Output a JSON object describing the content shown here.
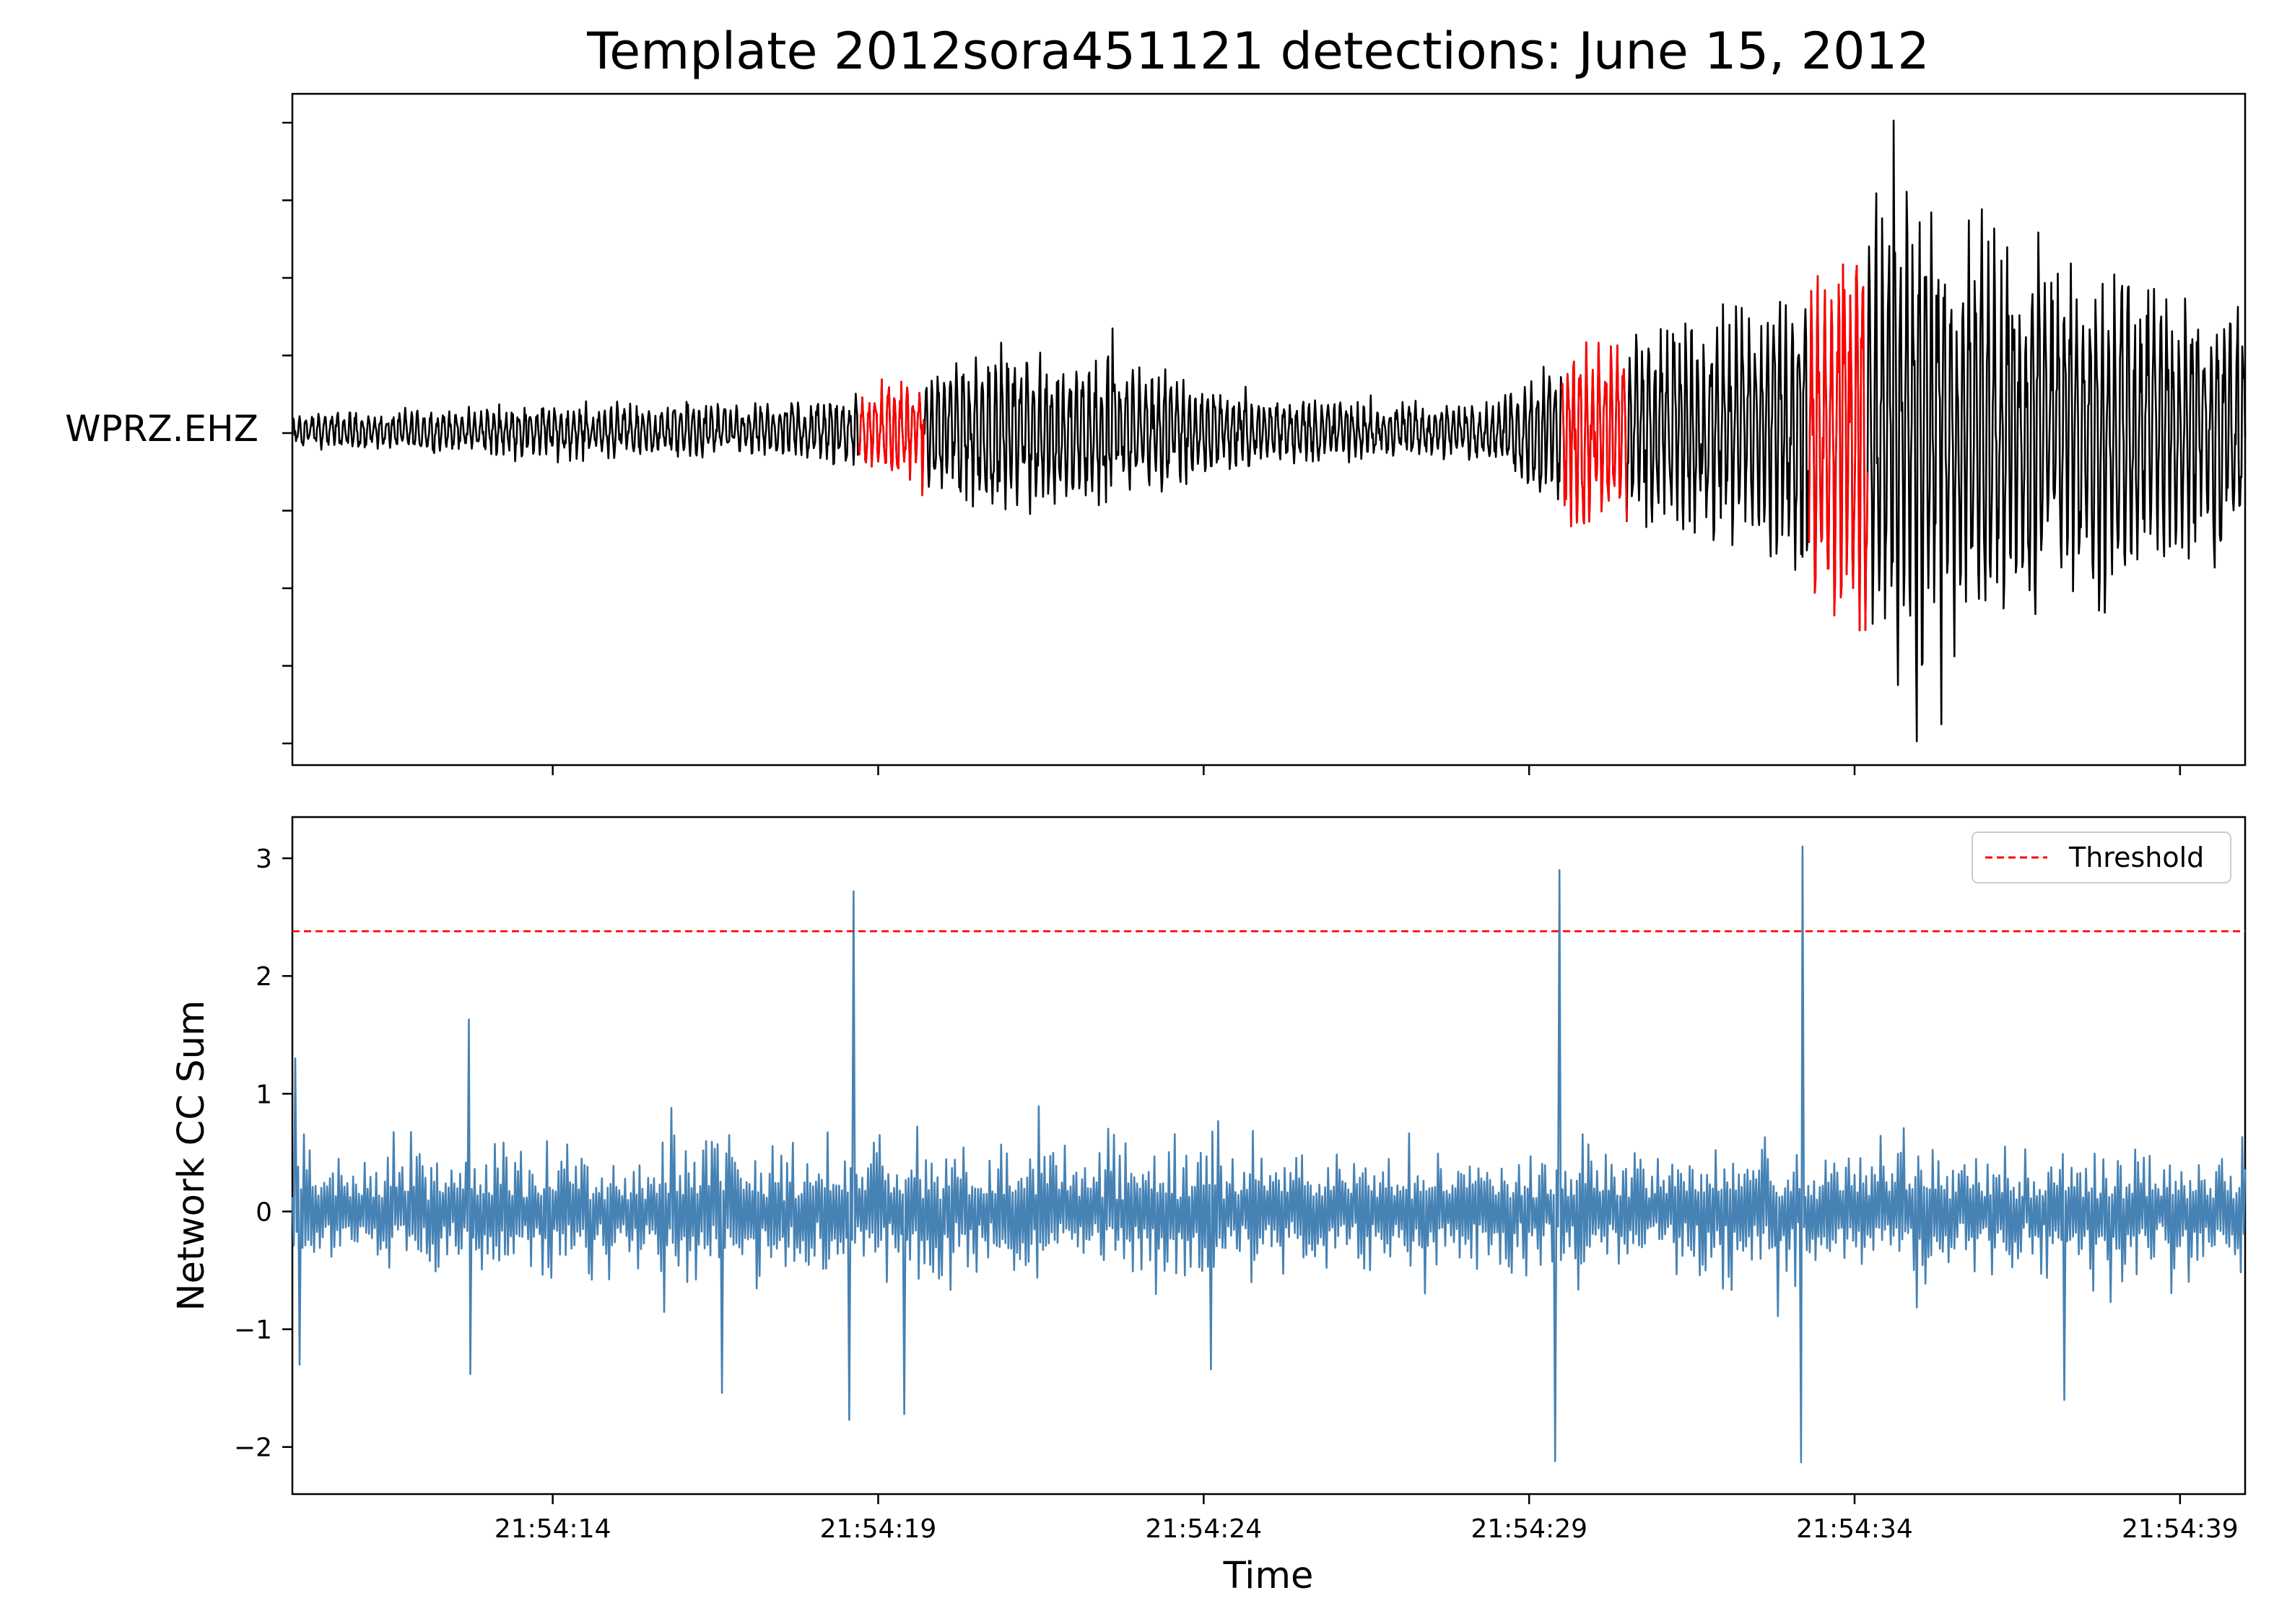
{
  "chart_data": [
    {
      "panel": "waveform",
      "type": "line",
      "title": "Template 2012sora451121 detections: June 15, 2012",
      "ylabel_station": "WPRZ.EHZ",
      "x_start_seconds_label": "21:54:10",
      "x_range_seconds": [
        10,
        40
      ],
      "trace_color": "#000000",
      "detection_color": "#ff0000",
      "detection_windows": [
        {
          "start": 18.7,
          "end": 19.7
        },
        {
          "start": 29.5,
          "end": 30.5
        },
        {
          "start": 33.3,
          "end": 34.2
        }
      ],
      "envelope": [
        {
          "t": 10.0,
          "amp": 0.06
        },
        {
          "t": 14.0,
          "amp": 0.1
        },
        {
          "t": 17.5,
          "amp": 0.1
        },
        {
          "t": 18.8,
          "amp": 0.14
        },
        {
          "t": 20.0,
          "amp": 0.28
        },
        {
          "t": 22.0,
          "amp": 0.3
        },
        {
          "t": 23.5,
          "amp": 0.22
        },
        {
          "t": 25.0,
          "amp": 0.12
        },
        {
          "t": 28.5,
          "amp": 0.1
        },
        {
          "t": 29.6,
          "amp": 0.35
        },
        {
          "t": 31.5,
          "amp": 0.42
        },
        {
          "t": 33.0,
          "amp": 0.5
        },
        {
          "t": 34.6,
          "amp": 1.0
        },
        {
          "t": 36.5,
          "amp": 0.7
        },
        {
          "t": 40.0,
          "amp": 0.45
        }
      ],
      "spikes": [
        {
          "t": 34.6,
          "value": 1.0
        },
        {
          "t": 34.95,
          "value": -1.0
        },
        {
          "t": 22.6,
          "value": 0.33
        },
        {
          "t": 22.5,
          "value": -0.23
        }
      ]
    },
    {
      "panel": "cc_sum",
      "type": "line",
      "xlabel": "Time",
      "ylabel": "Network CC Sum",
      "ylim": [
        -2.4,
        3.35
      ],
      "yticks": [
        3,
        2,
        1,
        0,
        -1,
        -2
      ],
      "ytick_labels": [
        "3",
        "2",
        "1",
        "0",
        "−1",
        "−2"
      ],
      "xticks_seconds": [
        14,
        19,
        24,
        29,
        34,
        39
      ],
      "xtick_labels": [
        "21:54:14",
        "21:54:19",
        "21:54:24",
        "21:54:29",
        "21:54:34",
        "21:54:39"
      ],
      "series": [
        {
          "name": "Threshold",
          "constant": 2.38,
          "color": "#ff0000",
          "style": "dashed"
        }
      ],
      "trace_color": "#4682b4",
      "noise_amplitude": 0.75,
      "peaks": [
        {
          "t": 10.05,
          "value": 1.3
        },
        {
          "t": 10.1,
          "value": -1.3
        },
        {
          "t": 12.7,
          "value": 1.63
        },
        {
          "t": 12.75,
          "value": -1.38
        },
        {
          "t": 16.6,
          "value": -1.54
        },
        {
          "t": 18.6,
          "value": 2.72
        },
        {
          "t": 18.55,
          "value": -1.77
        },
        {
          "t": 19.4,
          "value": -1.72
        },
        {
          "t": 24.1,
          "value": -1.34
        },
        {
          "t": 29.45,
          "value": 2.9
        },
        {
          "t": 29.42,
          "value": -2.12
        },
        {
          "t": 33.2,
          "value": 3.1
        },
        {
          "t": 33.17,
          "value": -2.13
        },
        {
          "t": 37.2,
          "value": -1.6
        }
      ],
      "legend": {
        "placement": "top-right",
        "entries": [
          "Threshold"
        ]
      }
    }
  ]
}
